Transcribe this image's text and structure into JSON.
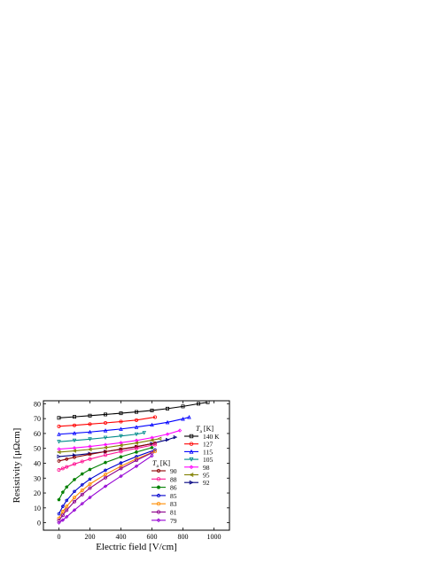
{
  "chart_data": {
    "type": "line",
    "title": "",
    "xlabel": "Electric field [V/cm]",
    "ylabel": "Resistivity [μΩcm]",
    "xlim": [
      -100,
      1100
    ],
    "ylim": [
      -5,
      82
    ],
    "xticks": [
      0,
      200,
      400,
      600,
      800,
      1000
    ],
    "yticks": [
      0,
      10,
      20,
      30,
      40,
      50,
      60,
      70,
      80
    ],
    "legend_right": {
      "title": "T_a [K]",
      "placement": "right",
      "entries": [
        "140 K",
        "127",
        "115",
        "105",
        "98",
        "95",
        "92"
      ]
    },
    "legend_left": {
      "title": "T_a [K]",
      "placement": "lower-center",
      "entries": [
        "90",
        "88",
        "86",
        "85",
        "83",
        "81",
        "79"
      ]
    },
    "series": [
      {
        "name": "140 K",
        "color": "#000000",
        "marker": "square",
        "x": [
          0,
          100,
          200,
          300,
          400,
          500,
          600,
          700,
          800,
          900,
          960
        ],
        "y": [
          70.5,
          71.2,
          72.0,
          72.8,
          73.6,
          74.5,
          75.5,
          76.7,
          78.2,
          80.0,
          81.0
        ]
      },
      {
        "name": "127",
        "color": "#ff0000",
        "marker": "circle",
        "x": [
          0,
          100,
          200,
          300,
          400,
          500,
          620
        ],
        "y": [
          64.8,
          65.5,
          66.3,
          67.1,
          68.0,
          69.0,
          71.0
        ]
      },
      {
        "name": "115",
        "color": "#0000ff",
        "marker": "triangle-up",
        "x": [
          0,
          100,
          200,
          300,
          400,
          500,
          600,
          700,
          800,
          840
        ],
        "y": [
          59.5,
          60.2,
          61.0,
          62.0,
          63.0,
          64.3,
          65.8,
          67.5,
          69.8,
          71.0
        ]
      },
      {
        "name": "105",
        "color": "#008b8b",
        "marker": "triangle-down",
        "x": [
          0,
          100,
          200,
          300,
          400,
          500,
          550
        ],
        "y": [
          54.5,
          55.3,
          56.2,
          57.2,
          58.3,
          59.5,
          60.5
        ]
      },
      {
        "name": "98",
        "color": "#ff00ff",
        "marker": "diamond",
        "x": [
          0,
          100,
          200,
          300,
          400,
          500,
          600,
          700,
          780
        ],
        "y": [
          49.5,
          50.3,
          51.3,
          52.5,
          53.8,
          55.3,
          57.2,
          59.5,
          62.0
        ]
      },
      {
        "name": "95",
        "color": "#808000",
        "marker": "triangle-left",
        "x": [
          0,
          100,
          200,
          300,
          400,
          500,
          600,
          650
        ],
        "y": [
          47.5,
          48.3,
          49.3,
          50.5,
          52.0,
          53.6,
          55.5,
          56.5
        ]
      },
      {
        "name": "92",
        "color": "#000080",
        "marker": "triangle-right",
        "x": [
          0,
          100,
          200,
          300,
          400,
          500,
          600,
          700,
          750
        ],
        "y": [
          44.5,
          45.4,
          46.5,
          47.8,
          49.3,
          51.0,
          53.2,
          55.8,
          57.5
        ]
      },
      {
        "name": "90",
        "color": "#8b0000",
        "marker": "hexagon",
        "x": [
          0,
          50,
          100,
          200,
          300,
          400,
          500,
          620
        ],
        "y": [
          41.5,
          42.8,
          44.0,
          46.0,
          47.8,
          49.5,
          51.2,
          53.5
        ]
      },
      {
        "name": "88",
        "color": "#ff1493",
        "marker": "circle",
        "x": [
          0,
          25,
          50,
          100,
          150,
          200,
          300,
          400,
          500,
          620
        ],
        "y": [
          35.5,
          36.5,
          37.5,
          39.5,
          41.2,
          42.8,
          45.5,
          47.8,
          50.0,
          52.5
        ]
      },
      {
        "name": "86",
        "color": "#008000",
        "marker": "star",
        "x": [
          0,
          25,
          50,
          100,
          150,
          200,
          300,
          400,
          500,
          600
        ],
        "y": [
          15.5,
          20.5,
          24.0,
          29.0,
          32.8,
          35.8,
          40.5,
          44.3,
          47.5,
          50.5
        ]
      },
      {
        "name": "85",
        "color": "#0000cd",
        "marker": "pentagon",
        "x": [
          0,
          25,
          50,
          100,
          150,
          200,
          300,
          400,
          500,
          620
        ],
        "y": [
          6.0,
          11.0,
          15.0,
          21.0,
          25.5,
          29.3,
          35.3,
          40.2,
          44.5,
          49.0
        ]
      },
      {
        "name": "83",
        "color": "#ff8c00",
        "marker": "circle",
        "x": [
          0,
          25,
          50,
          100,
          150,
          200,
          300,
          400,
          500,
          620
        ],
        "y": [
          3.0,
          7.5,
          11.0,
          17.0,
          21.8,
          26.0,
          32.5,
          38.0,
          43.0,
          48.0
        ]
      },
      {
        "name": "81",
        "color": "#8b008b",
        "marker": "circle",
        "x": [
          0,
          25,
          50,
          100,
          150,
          200,
          300,
          400,
          500,
          600
        ],
        "y": [
          1.5,
          5.0,
          8.5,
          14.2,
          19.0,
          23.3,
          30.3,
          36.5,
          42.0,
          47.0
        ]
      },
      {
        "name": "79",
        "color": "#9400d3",
        "marker": "diamond",
        "x": [
          0,
          25,
          50,
          100,
          150,
          200,
          300,
          400,
          500,
          600
        ],
        "y": [
          0.0,
          1.8,
          4.0,
          8.5,
          12.8,
          17.0,
          24.5,
          31.3,
          38.0,
          45.0
        ]
      }
    ]
  }
}
